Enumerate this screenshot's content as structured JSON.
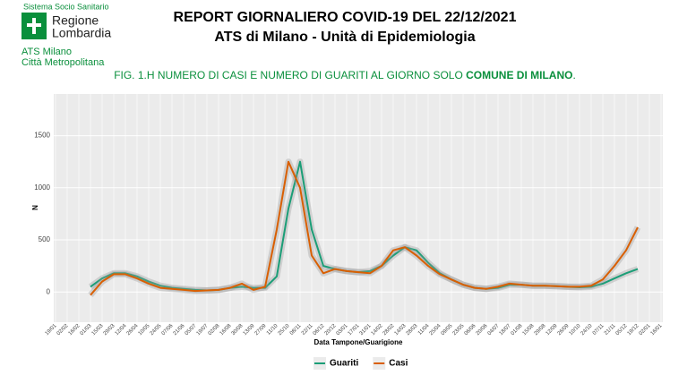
{
  "header": {
    "system": "Sistema Socio Sanitario",
    "region_1": "Regione",
    "region_2": "Lombardia",
    "ats_1": "ATS Milano",
    "ats_2": "Città Metropolitana",
    "title_1": "REPORT GIORNALIERO COVID-19 DEL 22/12/2021",
    "title_2": "ATS di Milano - Unità di Epidemiologia",
    "caption": "FIG. 1.H NUMERO DI CASI E NUMERO DI GUARITI AL GIORNO SOLO ",
    "caption_bold": "COMUNE DI MILANO",
    "caption_end": "."
  },
  "chart_data": {
    "type": "line",
    "x_label": "Data Tampone/Guarigione",
    "y_label": "N",
    "categories": [
      "19/01",
      "02/02",
      "16/02",
      "01/03",
      "15/03",
      "29/03",
      "12/04",
      "26/04",
      "10/05",
      "24/05",
      "07/06",
      "21/06",
      "05/07",
      "19/07",
      "02/08",
      "16/08",
      "30/08",
      "13/09",
      "27/09",
      "11/10",
      "25/10",
      "08/11",
      "22/11",
      "06/12",
      "20/12",
      "03/01",
      "17/01",
      "31/01",
      "14/02",
      "28/02",
      "14/03",
      "28/03",
      "11/04",
      "25/04",
      "09/05",
      "23/05",
      "06/06",
      "20/06",
      "04/07",
      "18/07",
      "01/08",
      "15/08",
      "29/08",
      "12/09",
      "26/09",
      "10/10",
      "24/10",
      "07/11",
      "21/11",
      "05/12",
      "19/12",
      "02/01",
      "16/01"
    ],
    "series": [
      {
        "name": "Guariti",
        "color": "#1b9e77",
        "values": [
          null,
          null,
          null,
          50,
          130,
          180,
          180,
          150,
          100,
          60,
          40,
          30,
          20,
          15,
          20,
          40,
          50,
          40,
          40,
          150,
          800,
          1250,
          600,
          250,
          220,
          200,
          190,
          200,
          250,
          350,
          430,
          400,
          280,
          180,
          120,
          70,
          40,
          30,
          40,
          70,
          70,
          60,
          60,
          55,
          50,
          45,
          50,
          80,
          130,
          180,
          220,
          null,
          null
        ]
      },
      {
        "name": "Casi",
        "color": "#d95f02",
        "values": [
          null,
          null,
          null,
          -30,
          100,
          170,
          170,
          130,
          80,
          40,
          30,
          20,
          10,
          15,
          20,
          40,
          80,
          20,
          50,
          600,
          1250,
          1000,
          350,
          180,
          220,
          200,
          190,
          180,
          250,
          400,
          430,
          350,
          250,
          170,
          120,
          70,
          40,
          30,
          50,
          80,
          70,
          60,
          60,
          55,
          50,
          50,
          60,
          120,
          250,
          400,
          620,
          null,
          null
        ]
      }
    ],
    "ylim": [
      -290,
      1900
    ],
    "yticks": [
      0,
      500,
      1000,
      1500
    ],
    "grid": true,
    "legend": "bottom"
  }
}
